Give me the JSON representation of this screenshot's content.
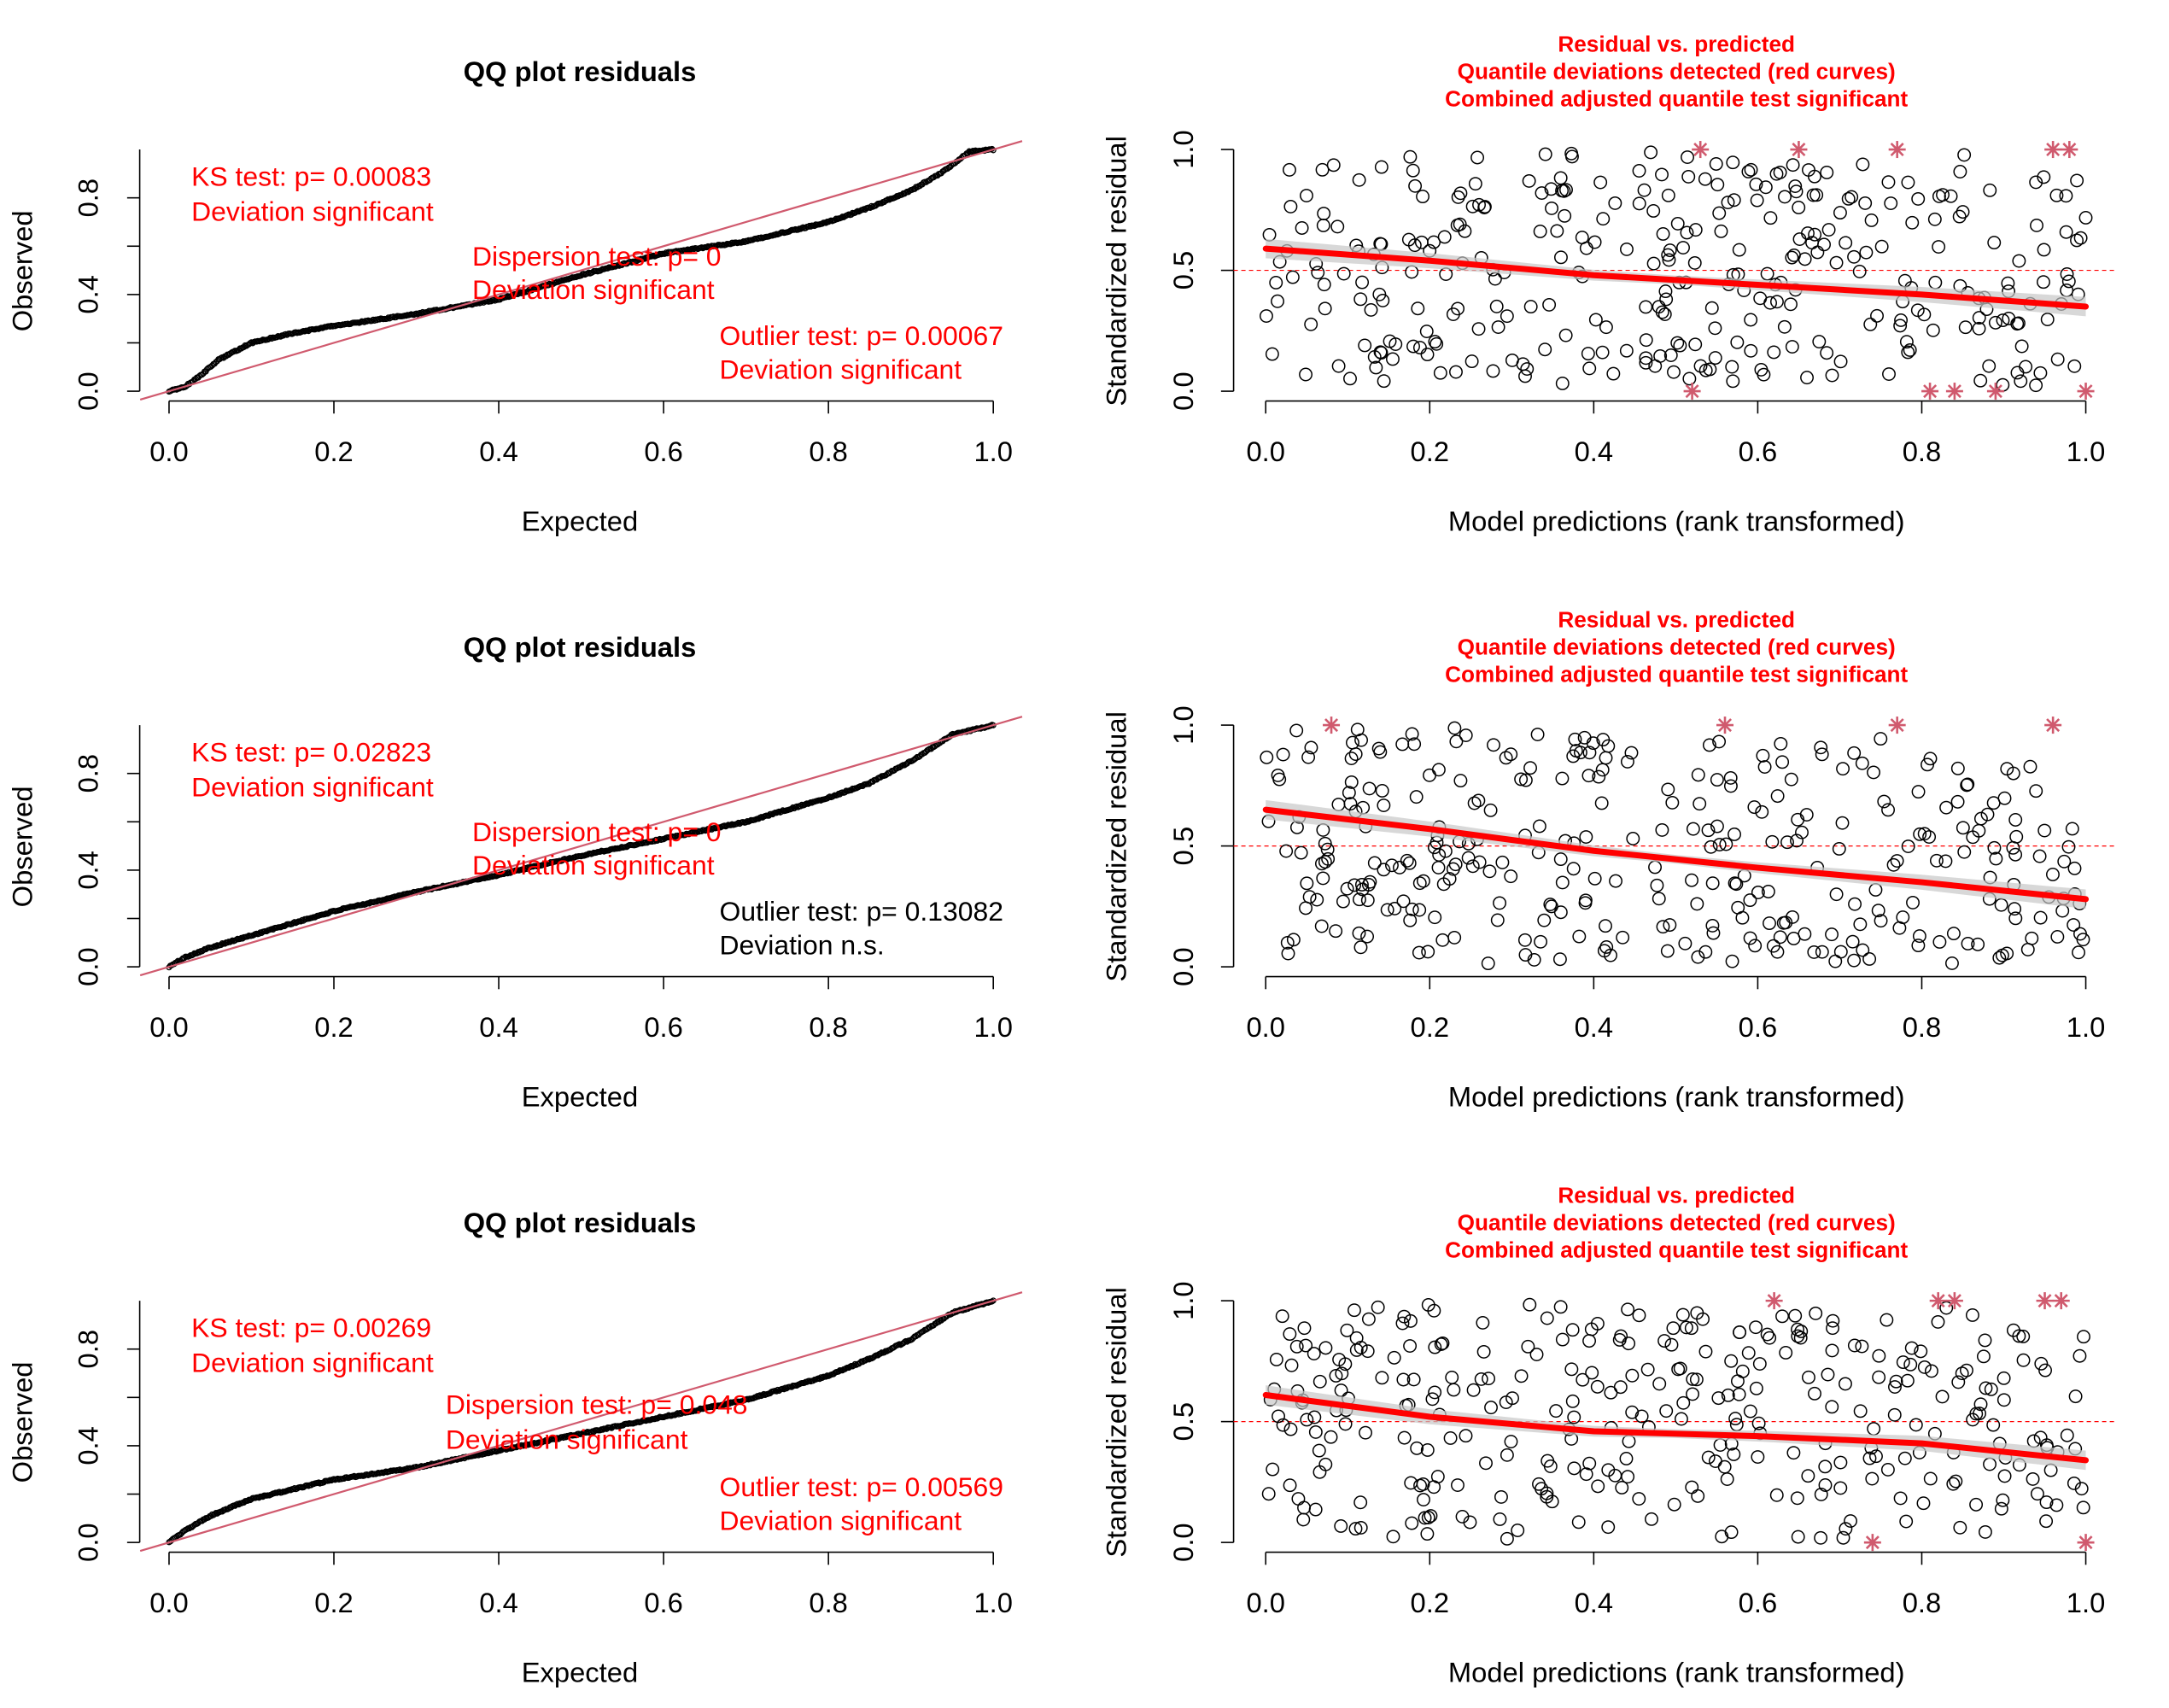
{
  "colors": {
    "red": "#ff0000",
    "qqline": "#d05a6e",
    "star": "#d05a6e",
    "black": "#000000",
    "band": "#c8c8c8"
  },
  "qq_panels": [
    {
      "title": "QQ plot residuals",
      "xlabel": "Expected",
      "ylabel": "Observed",
      "xticks": [
        "0.0",
        "0.2",
        "0.4",
        "0.6",
        "0.8",
        "1.0"
      ],
      "yticks": [
        "0.0",
        "0.4",
        "0.8"
      ],
      "ks": {
        "line1": "KS test: p= 0.00083",
        "line2": "Deviation  significant",
        "significant": true
      },
      "dispersion": {
        "line1": "Dispersion test: p= 0",
        "line2": "Deviation  significant",
        "significant": true
      },
      "outlier": {
        "line1": "Outlier test: p= 0.00067",
        "line2": "Deviation  significant",
        "significant": true
      }
    },
    {
      "title": "QQ plot residuals",
      "xlabel": "Expected",
      "ylabel": "Observed",
      "xticks": [
        "0.0",
        "0.2",
        "0.4",
        "0.6",
        "0.8",
        "1.0"
      ],
      "yticks": [
        "0.0",
        "0.4",
        "0.8"
      ],
      "ks": {
        "line1": "KS test: p= 0.02823",
        "line2": "Deviation  significant",
        "significant": true
      },
      "dispersion": {
        "line1": "Dispersion test: p= 0",
        "line2": "Deviation  significant",
        "significant": true
      },
      "outlier": {
        "line1": "Outlier test: p= 0.13082",
        "line2": "Deviation  n.s.",
        "significant": false
      }
    },
    {
      "title": "QQ plot residuals",
      "xlabel": "Expected",
      "ylabel": "Observed",
      "xticks": [
        "0.0",
        "0.2",
        "0.4",
        "0.6",
        "0.8",
        "1.0"
      ],
      "yticks": [
        "0.0",
        "0.4",
        "0.8"
      ],
      "ks": {
        "line1": "KS test: p= 0.00269",
        "line2": "Deviation  significant",
        "significant": true
      },
      "dispersion": {
        "line1": "Dispersion test: p= 0.048",
        "line2": "Deviation  significant",
        "significant": true
      },
      "outlier": {
        "line1": "Outlier test: p= 0.00569",
        "line2": "Deviation  significant",
        "significant": true
      }
    }
  ],
  "res_panels": [
    {
      "title_lines": [
        "Residual vs. predicted",
        "Quantile deviations detected (red curves)",
        "Combined adjusted quantile test significant"
      ],
      "xlabel": "Model predictions (rank transformed)",
      "ylabel": "Standardized residual",
      "xticks": [
        "0.0",
        "0.2",
        "0.4",
        "0.6",
        "0.8",
        "1.0"
      ],
      "yticks": [
        "0.0",
        "0.5",
        "1.0"
      ]
    },
    {
      "title_lines": [
        "Residual vs. predicted",
        "Quantile deviations detected (red curves)",
        "Combined adjusted quantile test significant"
      ],
      "xlabel": "Model predictions (rank transformed)",
      "ylabel": "Standardized residual",
      "xticks": [
        "0.0",
        "0.2",
        "0.4",
        "0.6",
        "0.8",
        "1.0"
      ],
      "yticks": [
        "0.0",
        "0.5",
        "1.0"
      ]
    },
    {
      "title_lines": [
        "Residual vs. predicted",
        "Quantile deviations detected (red curves)",
        "Combined adjusted quantile test significant"
      ],
      "xlabel": "Model predictions (rank transformed)",
      "ylabel": "Standardized residual",
      "xticks": [
        "0.0",
        "0.2",
        "0.4",
        "0.6",
        "0.8",
        "1.0"
      ],
      "yticks": [
        "0.0",
        "0.5",
        "1.0"
      ]
    }
  ],
  "chart_data": [
    {
      "type": "scatter",
      "title": "QQ plot residuals",
      "xlabel": "Expected",
      "ylabel": "Observed",
      "xlim": [
        0,
        1
      ],
      "ylim": [
        0,
        1
      ],
      "reference_line": [
        [
          0,
          0
        ],
        [
          1,
          1
        ]
      ],
      "series": [
        {
          "x": [
            0,
            0.02,
            0.04,
            0.06,
            0.1,
            0.15,
            0.2,
            0.3,
            0.4,
            0.5,
            0.6,
            0.7,
            0.8,
            0.85,
            0.9,
            0.94,
            0.97,
            1.0
          ],
          "y": [
            0,
            0.02,
            0.07,
            0.13,
            0.2,
            0.24,
            0.27,
            0.32,
            0.38,
            0.48,
            0.57,
            0.62,
            0.7,
            0.76,
            0.83,
            0.91,
            0.99,
            1.0
          ]
        }
      ]
    },
    {
      "type": "scatter",
      "title": "QQ plot residuals",
      "xlabel": "Expected",
      "ylabel": "Observed",
      "xlim": [
        0,
        1
      ],
      "ylim": [
        0,
        1
      ],
      "reference_line": [
        [
          0,
          0
        ],
        [
          1,
          1
        ]
      ],
      "series": [
        {
          "x": [
            0,
            0.02,
            0.05,
            0.1,
            0.15,
            0.2,
            0.3,
            0.4,
            0.5,
            0.6,
            0.7,
            0.8,
            0.85,
            0.9,
            0.95,
            1.0
          ],
          "y": [
            0,
            0.04,
            0.08,
            0.13,
            0.18,
            0.23,
            0.31,
            0.38,
            0.46,
            0.53,
            0.6,
            0.7,
            0.76,
            0.85,
            0.96,
            1.0
          ]
        }
      ]
    },
    {
      "type": "scatter",
      "title": "QQ plot residuals",
      "xlabel": "Expected",
      "ylabel": "Observed",
      "xlim": [
        0,
        1
      ],
      "ylim": [
        0,
        1
      ],
      "reference_line": [
        [
          0,
          0
        ],
        [
          1,
          1
        ]
      ],
      "series": [
        {
          "x": [
            0,
            0.02,
            0.05,
            0.1,
            0.15,
            0.2,
            0.3,
            0.4,
            0.5,
            0.6,
            0.7,
            0.8,
            0.85,
            0.9,
            0.95,
            1.0
          ],
          "y": [
            0,
            0.05,
            0.11,
            0.18,
            0.22,
            0.26,
            0.31,
            0.38,
            0.45,
            0.52,
            0.59,
            0.69,
            0.76,
            0.84,
            0.95,
            1.0
          ]
        }
      ]
    },
    {
      "type": "scatter",
      "title": "Residual vs. predicted",
      "xlabel": "Model predictions (rank transformed)",
      "ylabel": "Standardized residual",
      "xlim": [
        0,
        1
      ],
      "ylim": [
        0,
        1
      ],
      "reference_y": 0.5,
      "quantile_curve": {
        "x": [
          0,
          0.2,
          0.4,
          0.6,
          0.8,
          1.0
        ],
        "y": [
          0.59,
          0.54,
          0.48,
          0.44,
          0.4,
          0.35
        ]
      },
      "outliers": {
        "x": [
          0.53,
          0.65,
          0.77,
          0.96,
          0.98,
          0.52,
          0.81,
          0.84,
          0.89,
          1.0
        ],
        "y": [
          1,
          1,
          1,
          1,
          1,
          0,
          0,
          0,
          0,
          0
        ]
      }
    },
    {
      "type": "scatter",
      "title": "Residual vs. predicted",
      "xlabel": "Model predictions (rank transformed)",
      "ylabel": "Standardized residual",
      "xlim": [
        0,
        1
      ],
      "ylim": [
        0,
        1
      ],
      "reference_y": 0.5,
      "quantile_curve": {
        "x": [
          0,
          0.2,
          0.4,
          0.6,
          0.8,
          1.0
        ],
        "y": [
          0.65,
          0.57,
          0.48,
          0.41,
          0.35,
          0.28
        ]
      },
      "outliers": {
        "x": [
          0.08,
          0.56,
          0.77,
          0.96
        ],
        "y": [
          1,
          1,
          1,
          1
        ]
      }
    },
    {
      "type": "scatter",
      "title": "Residual vs. predicted",
      "xlabel": "Model predictions (rank transformed)",
      "ylabel": "Standardized residual",
      "xlim": [
        0,
        1
      ],
      "ylim": [
        0,
        1
      ],
      "reference_y": 0.5,
      "quantile_curve": {
        "x": [
          0,
          0.2,
          0.4,
          0.6,
          0.8,
          1.0
        ],
        "y": [
          0.61,
          0.52,
          0.46,
          0.44,
          0.41,
          0.34
        ]
      },
      "outliers": {
        "x": [
          0.62,
          0.82,
          0.84,
          0.95,
          0.97,
          0.74,
          1.0
        ],
        "y": [
          1,
          1,
          1,
          1,
          1,
          0,
          0
        ]
      }
    }
  ]
}
